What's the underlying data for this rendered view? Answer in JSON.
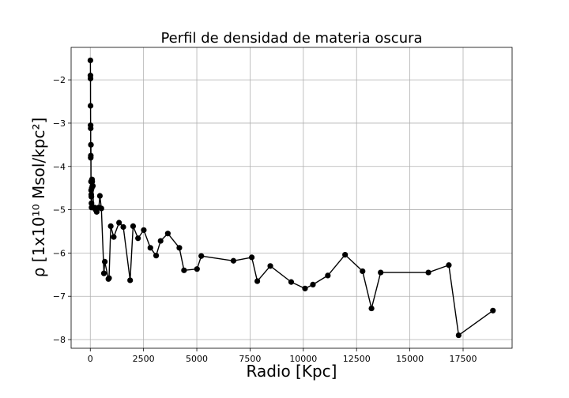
{
  "chart_data": {
    "type": "scatter",
    "title": "Perfil de densidad de materia oscura",
    "xlabel": "Radio [Kpc]",
    "ylabel": "ρ [1x10¹⁰ Msol/kpc²]",
    "xlim": [
      -900,
      19800
    ],
    "ylim": [
      -8.2,
      -1.25
    ],
    "xticks": [
      0,
      2500,
      5000,
      7500,
      10000,
      12500,
      15000,
      17500
    ],
    "xtick_labels": [
      "0",
      "2500",
      "5000",
      "7500",
      "10000",
      "12500",
      "15000",
      "17500"
    ],
    "yticks": [
      -2,
      -3,
      -4,
      -5,
      -6,
      -7,
      -8
    ],
    "ytick_labels": [
      "−2",
      "−3",
      "−4",
      "−5",
      "−6",
      "−7",
      "−8"
    ],
    "grid": true,
    "marker_color": "#000000",
    "line_color": "#000000",
    "x": [
      5,
      8,
      10,
      12,
      15,
      18,
      20,
      25,
      30,
      35,
      40,
      45,
      50,
      55,
      60,
      70,
      80,
      90,
      100,
      120,
      150,
      200,
      250,
      300,
      400,
      450,
      520,
      640,
      680,
      850,
      880,
      960,
      1100,
      1350,
      1550,
      1870,
      2010,
      2240,
      2510,
      2820,
      3090,
      3300,
      3640,
      4180,
      4400,
      5010,
      5210,
      6720,
      7580,
      7840,
      8450,
      9430,
      10080,
      10450,
      11150,
      11960,
      12780,
      13200,
      13630,
      15870,
      16830,
      17290,
      18900
    ],
    "y": [
      -1.55,
      -1.9,
      -1.97,
      -2.6,
      -3.05,
      -3.12,
      -3.8,
      -3.75,
      -3.5,
      -4.35,
      -4.55,
      -4.65,
      -4.7,
      -4.85,
      -4.95,
      -4.5,
      -4.3,
      -4.35,
      -4.45,
      -4.45,
      -4.95,
      -4.95,
      -5.0,
      -5.05,
      -4.95,
      -4.68,
      -4.97,
      -6.47,
      -6.2,
      -6.6,
      -6.58,
      -5.38,
      -5.63,
      -5.3,
      -5.4,
      -6.63,
      -5.38,
      -5.66,
      -5.47,
      -5.88,
      -6.06,
      -5.72,
      -5.55,
      -5.88,
      -6.4,
      -6.37,
      -6.07,
      -6.18,
      -6.1,
      -6.65,
      -6.3,
      -6.67,
      -6.82,
      -6.73,
      -6.52,
      -6.04,
      -6.42,
      -7.28,
      -6.45,
      -6.45,
      -6.28,
      -7.9,
      -7.33
    ]
  }
}
